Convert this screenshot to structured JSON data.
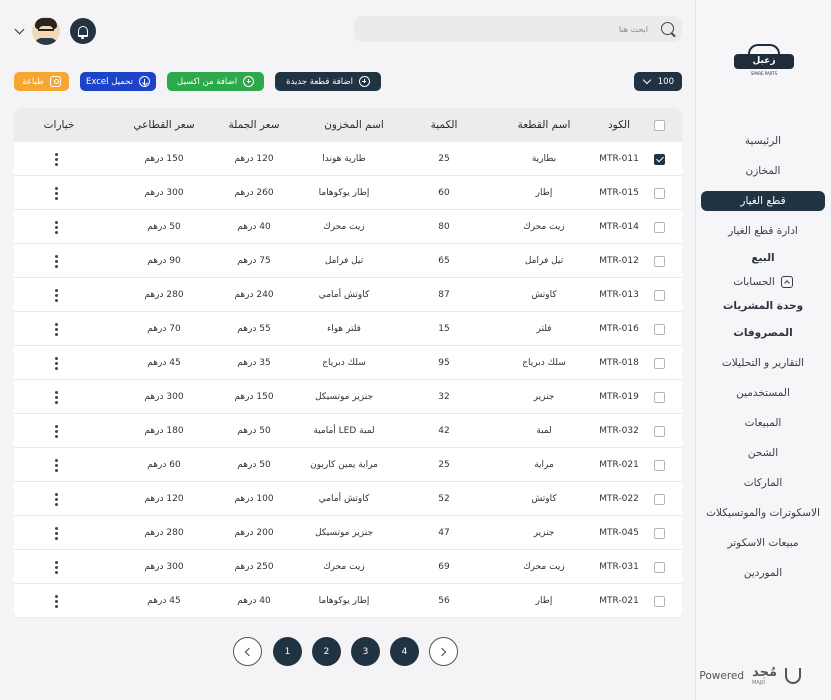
{
  "sidebar": {
    "logo_text": "زعبل",
    "logo_sub": "SPARE PARTS",
    "items": [
      {
        "label": "الرئيسية",
        "bold": false,
        "active": false
      },
      {
        "label": "المخازن",
        "bold": false,
        "active": false
      },
      {
        "label": "قطع الغيار",
        "bold": false,
        "active": true
      },
      {
        "label": "ادارة قطع الغيار",
        "bold": false,
        "active": false
      },
      {
        "label": "البيع",
        "bold": true,
        "active": false
      },
      {
        "label": "الحسابات",
        "bold": false,
        "active": false,
        "chevron": true
      },
      {
        "label": "وحدة المشريات",
        "bold": true,
        "active": false
      },
      {
        "label": "المصروفات",
        "bold": true,
        "active": false
      },
      {
        "label": "التقارير و التحليلات",
        "bold": false,
        "active": false
      },
      {
        "label": "المستخدمين",
        "bold": false,
        "active": false
      },
      {
        "label": "المبيعات",
        "bold": false,
        "active": false
      },
      {
        "label": "الشحن",
        "bold": false,
        "active": false
      },
      {
        "label": "الماركات",
        "bold": false,
        "active": false
      },
      {
        "label": "الاسكوترات والموتسيكلات",
        "bold": false,
        "active": false
      },
      {
        "label": "مبيعات الاسكوتر",
        "bold": false,
        "active": false
      },
      {
        "label": "الموردين",
        "bold": false,
        "active": false
      }
    ],
    "powered_label": "Powered",
    "powered_brand": "مُجد",
    "powered_brand_sub": "MAJD"
  },
  "header": {
    "search_placeholder": "ابحث هنا"
  },
  "toolbar": {
    "print_label": "طباعة",
    "excel_download_label": "تحميل Excel",
    "excel_add_label": "اضافة من اكسيل",
    "new_part_label": "اضافة قطعة جديدة",
    "page_size": "100"
  },
  "table": {
    "headers": {
      "code": "الكود",
      "name": "اسم القطعة",
      "qty": "الكمية",
      "store": "اسم المخزون",
      "wholesale": "سعر الجملة",
      "retail": "سعر القطاعي",
      "options": "خيارات"
    },
    "rows": [
      {
        "code": "MTR-011",
        "name": "بطارية",
        "qty": "25",
        "store": "طارية هوندا",
        "wholesale": "120 درهم",
        "retail": "150 درهم",
        "checked": true
      },
      {
        "code": "MTR-015",
        "name": "إطار",
        "qty": "60",
        "store": "إطار يوكوهاما",
        "wholesale": "260 درهم",
        "retail": "300 درهم",
        "checked": false
      },
      {
        "code": "MTR-014",
        "name": "زيت محرك",
        "qty": "80",
        "store": "زيت محرك",
        "wholesale": "40 درهم",
        "retail": "50 درهم",
        "checked": false
      },
      {
        "code": "MTR-012",
        "name": "تيل فرامل",
        "qty": "65",
        "store": "تيل فرامل",
        "wholesale": "75 درهم",
        "retail": "90 درهم",
        "checked": false
      },
      {
        "code": "MTR-013",
        "name": "كاوتش",
        "qty": "87",
        "store": "كاوتش أمامي",
        "wholesale": "240 درهم",
        "retail": "280 درهم",
        "checked": false
      },
      {
        "code": "MTR-016",
        "name": "فلتر",
        "qty": "15",
        "store": "فلتر هواء",
        "wholesale": "55 درهم",
        "retail": "70 درهم",
        "checked": false
      },
      {
        "code": "MTR-018",
        "name": "سلك دبرياج",
        "qty": "95",
        "store": "سلك دبرياج",
        "wholesale": "35 درهم",
        "retail": "45 درهم",
        "checked": false
      },
      {
        "code": "MTR-019",
        "name": "جنزير",
        "qty": "32",
        "store": "جنزير موتسيكل",
        "wholesale": "150 درهم",
        "retail": "300 درهم",
        "checked": false
      },
      {
        "code": "MTR-032",
        "name": "لمبة",
        "qty": "42",
        "store": "لمبة LED أمامية",
        "wholesale": "50 درهم",
        "retail": "180 درهم",
        "checked": false
      },
      {
        "code": "MTR-021",
        "name": "مراية",
        "qty": "25",
        "store": "مراية يمين كاربون",
        "wholesale": "50 درهم",
        "retail": "60 درهم",
        "checked": false
      },
      {
        "code": "MTR-022",
        "name": "كاوتش",
        "qty": "52",
        "store": "كاوتش أمامي",
        "wholesale": "100 درهم",
        "retail": "120 درهم",
        "checked": false
      },
      {
        "code": "MTR-045",
        "name": "جنزير",
        "qty": "47",
        "store": "جنزير موتسيكل",
        "wholesale": "200 درهم",
        "retail": "280 درهم",
        "checked": false
      },
      {
        "code": "MTR-031",
        "name": "زيت محرك",
        "qty": "69",
        "store": "زيت محرك",
        "wholesale": "250 درهم",
        "retail": "300 درهم",
        "checked": false
      },
      {
        "code": "MTR-021",
        "name": "إطار",
        "qty": "56",
        "store": "إطار يوكوهاما",
        "wholesale": "40 درهم",
        "retail": "45 درهم",
        "checked": false
      }
    ]
  },
  "pagination": {
    "pages": [
      "1",
      "2",
      "3",
      "4"
    ],
    "current": "1"
  }
}
